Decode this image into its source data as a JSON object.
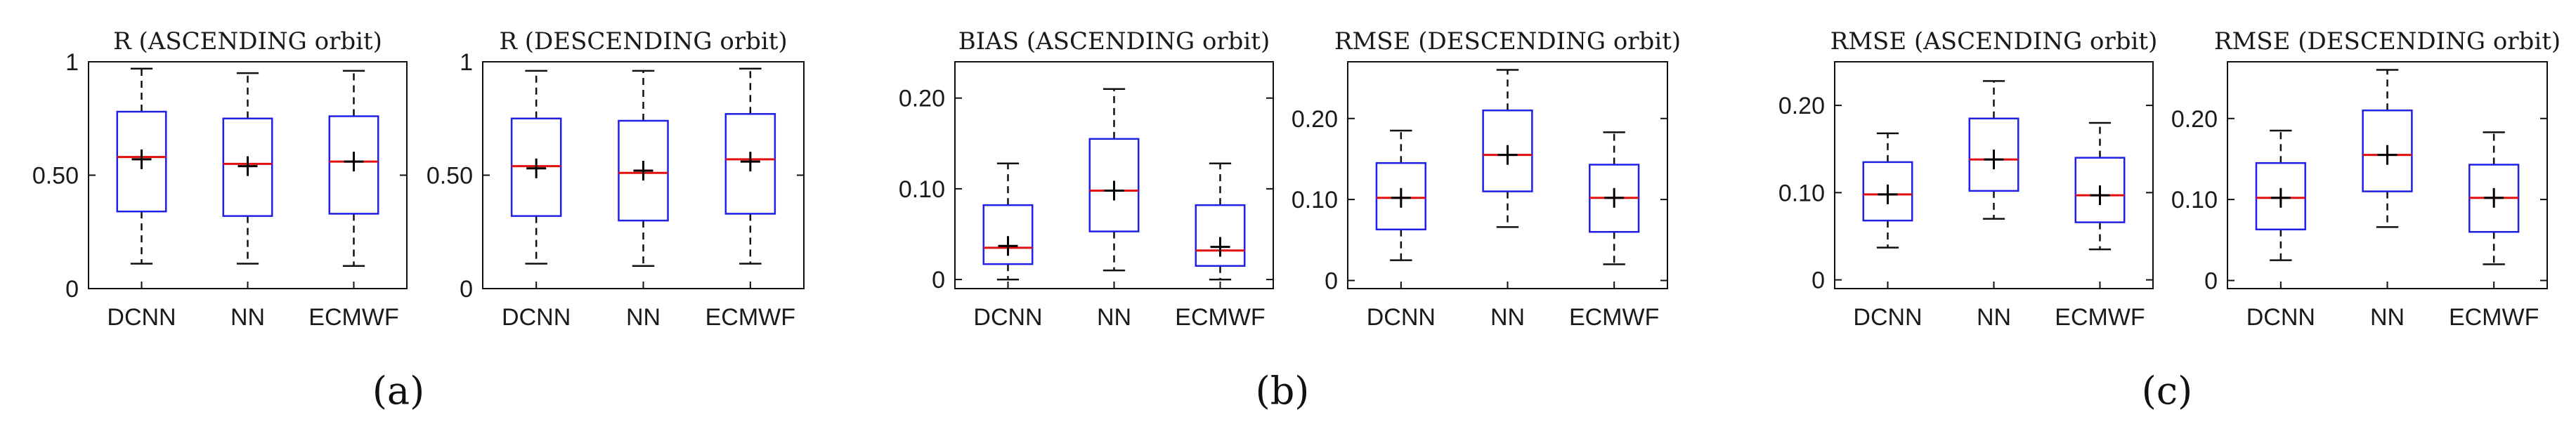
{
  "chart_data": [
    {
      "type": "box",
      "title": "R (ASCENDING orbit)",
      "categories": [
        "DCNN",
        "NN",
        "ECMWF"
      ],
      "ylim": [
        0,
        1
      ],
      "yticks": [
        0,
        0.5,
        1
      ],
      "ytick_labels": [
        "0",
        "0.50",
        "1"
      ],
      "boxes": [
        {
          "whisker_low": 0.11,
          "q1": 0.34,
          "median": 0.58,
          "q3": 0.78,
          "whisker_high": 0.97,
          "mean": 0.57
        },
        {
          "whisker_low": 0.11,
          "q1": 0.32,
          "median": 0.55,
          "q3": 0.75,
          "whisker_high": 0.95,
          "mean": 0.54
        },
        {
          "whisker_low": 0.1,
          "q1": 0.33,
          "median": 0.56,
          "q3": 0.76,
          "whisker_high": 0.96,
          "mean": 0.56
        }
      ]
    },
    {
      "type": "box",
      "title": "R (DESCENDING orbit)",
      "categories": [
        "DCNN",
        "NN",
        "ECMWF"
      ],
      "ylim": [
        0,
        1
      ],
      "yticks": [
        0,
        0.5,
        1
      ],
      "ytick_labels": [
        "0",
        "0.50",
        "1"
      ],
      "boxes": [
        {
          "whisker_low": 0.11,
          "q1": 0.32,
          "median": 0.54,
          "q3": 0.75,
          "whisker_high": 0.96,
          "mean": 0.53
        },
        {
          "whisker_low": 0.1,
          "q1": 0.3,
          "median": 0.51,
          "q3": 0.74,
          "whisker_high": 0.96,
          "mean": 0.52
        },
        {
          "whisker_low": 0.11,
          "q1": 0.33,
          "median": 0.57,
          "q3": 0.77,
          "whisker_high": 0.97,
          "mean": 0.56
        }
      ]
    },
    {
      "type": "box",
      "title": "BIAS (ASCENDING orbit)",
      "categories": [
        "DCNN",
        "NN",
        "ECMWF"
      ],
      "ylim": [
        -0.01,
        0.24
      ],
      "yticks": [
        0,
        0.1,
        0.2
      ],
      "ytick_labels": [
        "0",
        "0.10",
        "0.20"
      ],
      "boxes": [
        {
          "whisker_low": 0.0,
          "q1": 0.017,
          "median": 0.035,
          "q3": 0.082,
          "whisker_high": 0.128,
          "mean": 0.037
        },
        {
          "whisker_low": 0.01,
          "q1": 0.053,
          "median": 0.098,
          "q3": 0.155,
          "whisker_high": 0.21,
          "mean": 0.098
        },
        {
          "whisker_low": 0.0,
          "q1": 0.015,
          "median": 0.032,
          "q3": 0.082,
          "whisker_high": 0.128,
          "mean": 0.036
        }
      ]
    },
    {
      "type": "box",
      "title": "RMSE (DESCENDING orbit)",
      "categories": [
        "DCNN",
        "NN",
        "ECMWF"
      ],
      "ylim": [
        -0.01,
        0.27
      ],
      "yticks": [
        0,
        0.1,
        0.2
      ],
      "ytick_labels": [
        "0",
        "0.10",
        "0.20"
      ],
      "boxes": [
        {
          "whisker_low": 0.025,
          "q1": 0.063,
          "median": 0.102,
          "q3": 0.145,
          "whisker_high": 0.185,
          "mean": 0.102
        },
        {
          "whisker_low": 0.066,
          "q1": 0.11,
          "median": 0.155,
          "q3": 0.21,
          "whisker_high": 0.26,
          "mean": 0.155
        },
        {
          "whisker_low": 0.02,
          "q1": 0.06,
          "median": 0.102,
          "q3": 0.143,
          "whisker_high": 0.183,
          "mean": 0.102
        }
      ]
    },
    {
      "type": "box",
      "title": "RMSE (ASCENDING orbit)",
      "categories": [
        "DCNN",
        "NN",
        "ECMWF"
      ],
      "ylim": [
        -0.01,
        0.25
      ],
      "yticks": [
        0,
        0.1,
        0.2
      ],
      "ytick_labels": [
        "0",
        "0.10",
        "0.20"
      ],
      "boxes": [
        {
          "whisker_low": 0.037,
          "q1": 0.068,
          "median": 0.098,
          "q3": 0.135,
          "whisker_high": 0.168,
          "mean": 0.098
        },
        {
          "whisker_low": 0.07,
          "q1": 0.102,
          "median": 0.138,
          "q3": 0.185,
          "whisker_high": 0.228,
          "mean": 0.138
        },
        {
          "whisker_low": 0.035,
          "q1": 0.066,
          "median": 0.097,
          "q3": 0.14,
          "whisker_high": 0.18,
          "mean": 0.097
        }
      ]
    },
    {
      "type": "box",
      "title": "RMSE (DESCENDING orbit)",
      "categories": [
        "DCNN",
        "NN",
        "ECMWF"
      ],
      "ylim": [
        -0.01,
        0.27
      ],
      "yticks": [
        0,
        0.1,
        0.2
      ],
      "ytick_labels": [
        "0",
        "0.10",
        "0.20"
      ],
      "boxes": [
        {
          "whisker_low": 0.025,
          "q1": 0.063,
          "median": 0.102,
          "q3": 0.145,
          "whisker_high": 0.185,
          "mean": 0.102
        },
        {
          "whisker_low": 0.066,
          "q1": 0.11,
          "median": 0.155,
          "q3": 0.21,
          "whisker_high": 0.26,
          "mean": 0.155
        },
        {
          "whisker_low": 0.02,
          "q1": 0.06,
          "median": 0.102,
          "q3": 0.143,
          "whisker_high": 0.183,
          "mean": 0.102
        }
      ]
    }
  ],
  "panel_labels": [
    "(a)",
    "(b)",
    "(c)"
  ],
  "colors": {
    "box": "#1f1fe6",
    "median": "#e01010",
    "whisker": "#111111",
    "mean": "#000000",
    "axis": "#111111"
  }
}
